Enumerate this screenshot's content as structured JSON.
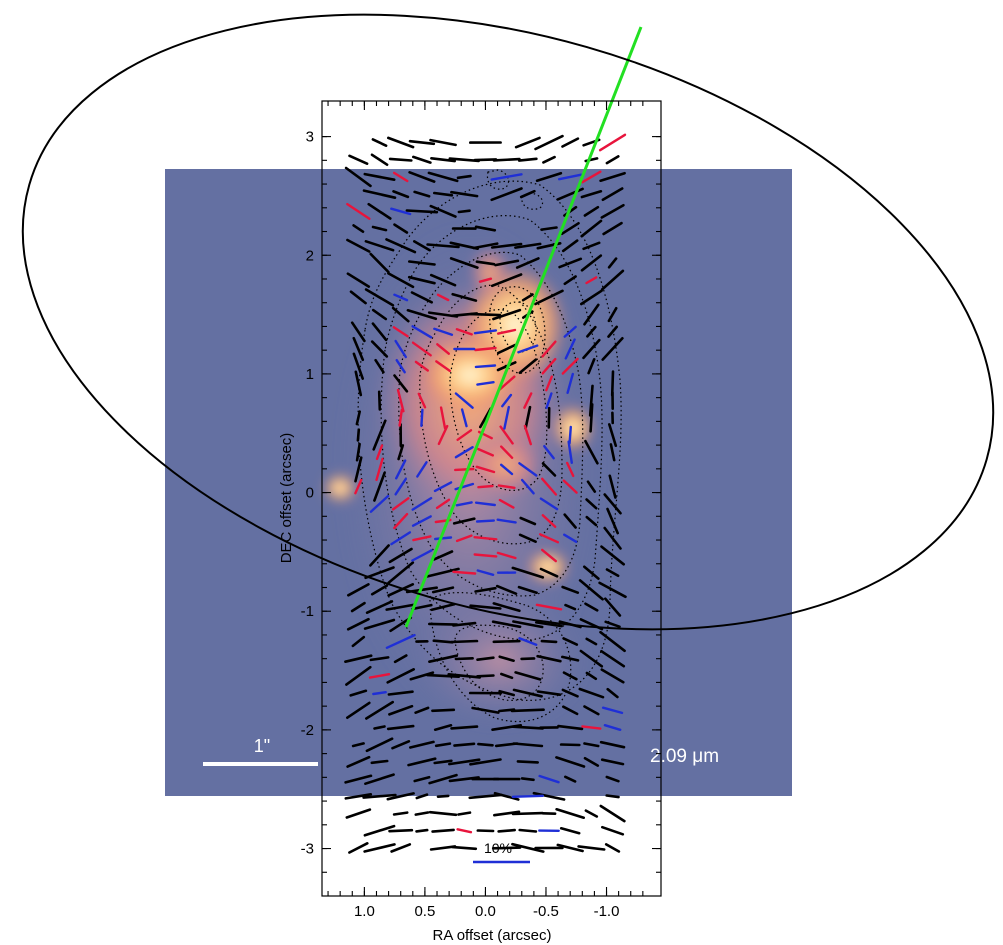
{
  "chart_data": {
    "type": "scatter",
    "xlabel": "RA offset (arcsec)",
    "ylabel": "DEC offset (arcsec)",
    "xlim": [
      1.35,
      -1.45
    ],
    "ylim": [
      -3.4,
      3.3
    ],
    "x_ticks": [
      {
        "value": 1.0,
        "label": "1.0"
      },
      {
        "value": 0.5,
        "label": "0.5"
      },
      {
        "value": 0.0,
        "label": "0.0"
      },
      {
        "value": -0.5,
        "label": "-0.5"
      },
      {
        "value": -1.0,
        "label": "-1.0"
      }
    ],
    "y_ticks": [
      {
        "value": 3,
        "label": "3"
      },
      {
        "value": 2,
        "label": "2"
      },
      {
        "value": 1,
        "label": "1"
      },
      {
        "value": 0,
        "label": "0"
      },
      {
        "value": -1,
        "label": "-1"
      },
      {
        "value": -2,
        "label": "-2"
      },
      {
        "value": -3,
        "label": "-3"
      }
    ],
    "background_image": {
      "wavelength_label": "2.09 μm",
      "scale_bar_label": "1\"",
      "background_color": "#6470a2",
      "extent": {
        "x": [
          1.35,
          -1.45
        ],
        "y": [
          -2.52,
          2.73
        ]
      }
    },
    "reference_vector_label": "10%",
    "series": [
      {
        "name": "",
        "color": "#000000"
      },
      {
        "name": "",
        "color": "#e8143c"
      },
      {
        "name": "",
        "color": "#1f2fd6"
      }
    ],
    "green_axis_line": {
      "color": "#22e022",
      "from": [
        0.78,
        -1.12
      ],
      "to": [
        -1.2,
        3.88
      ]
    },
    "ellipse": {
      "color": "#000000",
      "center_pixel_hint": "outer",
      "semi_major_arcsec": 4.25,
      "semi_minor_arcsec": 2.55,
      "angle_deg": 16
    }
  }
}
